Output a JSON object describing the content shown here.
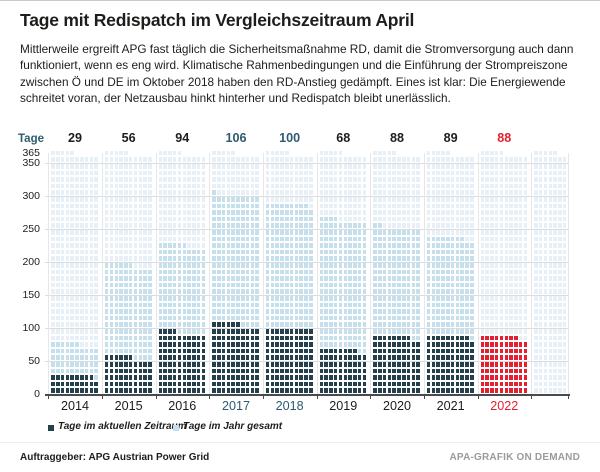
{
  "header": {
    "title": "Tage mit Redispatch im Vergleichszeitraum April",
    "description": "Mittlerweile ergreift APG fast täglich die Sicherheitsmaßnahme RD, damit die Stromversorgung auch dann funktioniert, wenn es eng wird. Klimatische Rahmenbedingungen und die Einführung der Strompreiszone zwischen Ö und DE im Oktober 2018 haben den RD-Anstieg gedämpft. Eines ist klar: Die Energiewende schreitet voran, der Netzausbau hinkt hinterher und Redispatch bleibt unerlässlich."
  },
  "chart_data": {
    "type": "waffle",
    "title": "Tage mit Redispatch im Vergleichszeitraum April",
    "row_label": "Tage",
    "unit": "Tage",
    "days_in_year": 365,
    "square_value_days": 1,
    "squares_per_row": 10,
    "y_ticks": [
      365,
      350,
      300,
      250,
      200,
      150,
      100,
      50,
      0
    ],
    "categories": [
      "2014",
      "2015",
      "2016",
      "2017",
      "2018",
      "2019",
      "2020",
      "2021",
      "2022"
    ],
    "series": [
      {
        "name": "Tage im aktuellen Zeitraum",
        "values": [
          29,
          56,
          94,
          106,
          100,
          68,
          88,
          89,
          88
        ]
      },
      {
        "name": "Tage im Jahr gesamt",
        "values": [
          76,
          196,
          226,
          301,
          289,
          264,
          252,
          238,
          88
        ]
      }
    ],
    "years": [
      {
        "label": "2014",
        "period": 29,
        "year_total": 76,
        "accent": "default"
      },
      {
        "label": "2015",
        "period": 56,
        "year_total": 196,
        "accent": "default"
      },
      {
        "label": "2016",
        "period": 94,
        "year_total": 226,
        "accent": "default"
      },
      {
        "label": "2017",
        "period": 106,
        "year_total": 301,
        "accent": "teal"
      },
      {
        "label": "2018",
        "period": 100,
        "year_total": 289,
        "accent": "teal"
      },
      {
        "label": "2019",
        "period": 68,
        "year_total": 264,
        "accent": "default"
      },
      {
        "label": "2020",
        "period": 88,
        "year_total": 252,
        "accent": "default"
      },
      {
        "label": "2021",
        "period": 89,
        "year_total": 238,
        "accent": "default"
      },
      {
        "label": "2022",
        "period": 88,
        "year_total": 88,
        "accent": "red"
      }
    ],
    "colors": {
      "period": "#24404d",
      "period_highlight": "#e51f2f",
      "year_total": "#c6dfed",
      "grid_remainder": "#e7f0f6",
      "text_default": "#1d1d1b",
      "accent_teal": "#2d5b70",
      "accent_red": "#e51f2f"
    }
  },
  "legend": {
    "items": [
      {
        "label": "Tage im aktuellen Zeitraum",
        "color": "#24404d"
      },
      {
        "label": "Tage im Jahr gesamt",
        "color": "#c6dfed"
      }
    ]
  },
  "footer": {
    "client": "Auftraggeber: APG Austrian Power Grid",
    "brand": "APA-GRAFIK ON DEMAND"
  }
}
